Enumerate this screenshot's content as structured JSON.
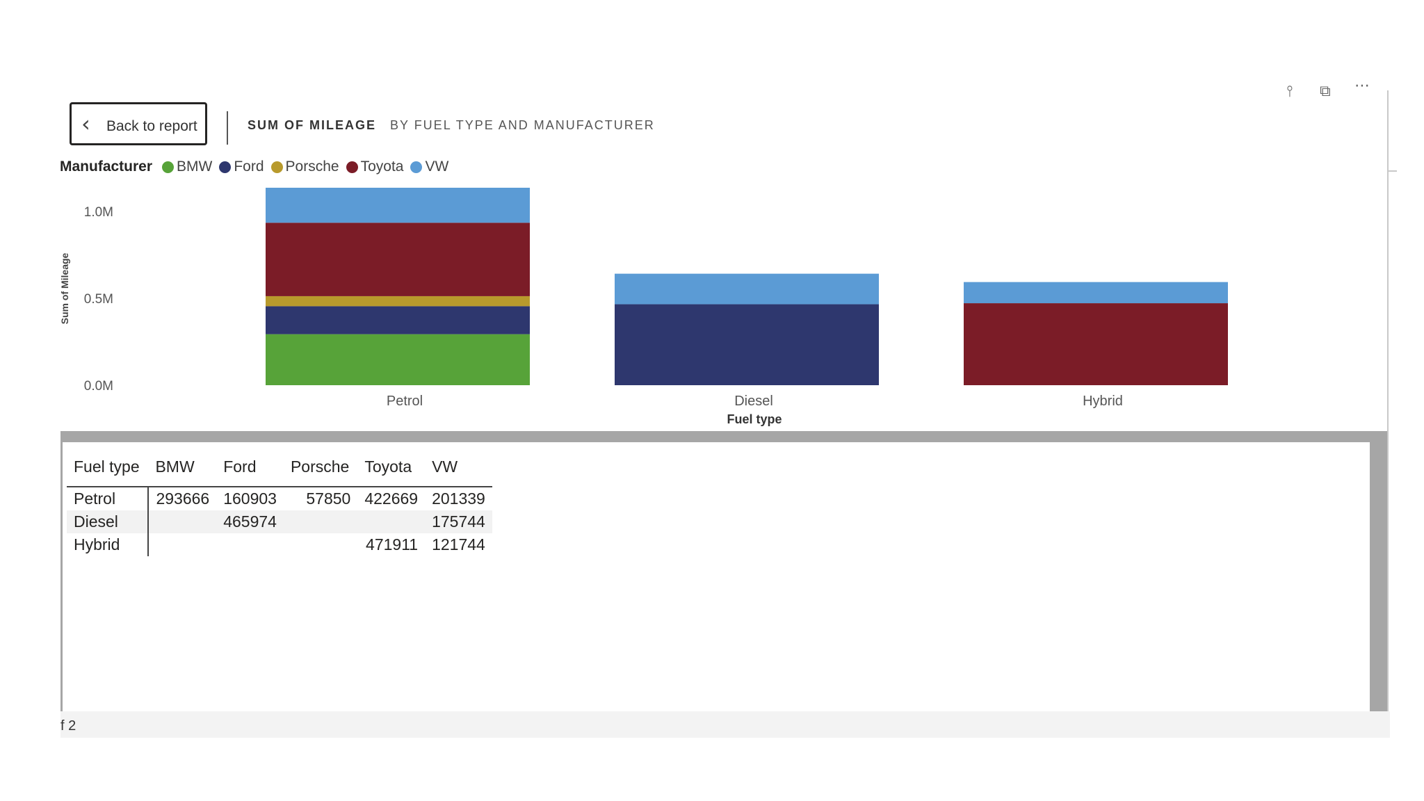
{
  "header": {
    "back_label": "Back to report",
    "title": "SUM OF MILEAGE",
    "subtitle": "BY FUEL TYPE AND MANUFACTURER"
  },
  "legend": {
    "title": "Manufacturer",
    "items": [
      {
        "label": "BMW",
        "color": "#57a339"
      },
      {
        "label": "Ford",
        "color": "#2e376e"
      },
      {
        "label": "Porsche",
        "color": "#b89a2c"
      },
      {
        "label": "Toyota",
        "color": "#7b1c27"
      },
      {
        "label": "VW",
        "color": "#5b9bd5"
      }
    ]
  },
  "chart_data": {
    "type": "bar",
    "stacked": true,
    "categories": [
      "Petrol",
      "Diesel",
      "Hybrid"
    ],
    "series": [
      {
        "name": "BMW",
        "color": "#57a339",
        "values": [
          293666,
          0,
          0
        ]
      },
      {
        "name": "Ford",
        "color": "#2e376e",
        "values": [
          160903,
          465974,
          0
        ]
      },
      {
        "name": "Porsche",
        "color": "#b89a2c",
        "values": [
          57850,
          0,
          0
        ]
      },
      {
        "name": "Toyota",
        "color": "#7b1c27",
        "values": [
          422669,
          0,
          471911
        ]
      },
      {
        "name": "VW",
        "color": "#5b9bd5",
        "values": [
          201339,
          175744,
          121744
        ]
      }
    ],
    "xlabel": "Fuel type",
    "ylabel": "Sum of Mileage",
    "ylim": [
      0,
      1136427
    ],
    "yticks": [
      0,
      500000,
      1000000
    ],
    "ytick_labels": [
      "0.0M",
      "0.5M",
      "1.0M"
    ],
    "grid": false
  },
  "table": {
    "columns": [
      "Fuel type",
      "BMW",
      "Ford",
      "Porsche",
      "Toyota",
      "VW"
    ],
    "rows": [
      [
        "Petrol",
        "293666",
        "160903",
        "57850",
        "422669",
        "201339"
      ],
      [
        "Diesel",
        "",
        "465974",
        "",
        "",
        "175744"
      ],
      [
        "Hybrid",
        "",
        "",
        "",
        "471911",
        "121744"
      ]
    ]
  },
  "footer": {
    "page_text": "f 2"
  }
}
